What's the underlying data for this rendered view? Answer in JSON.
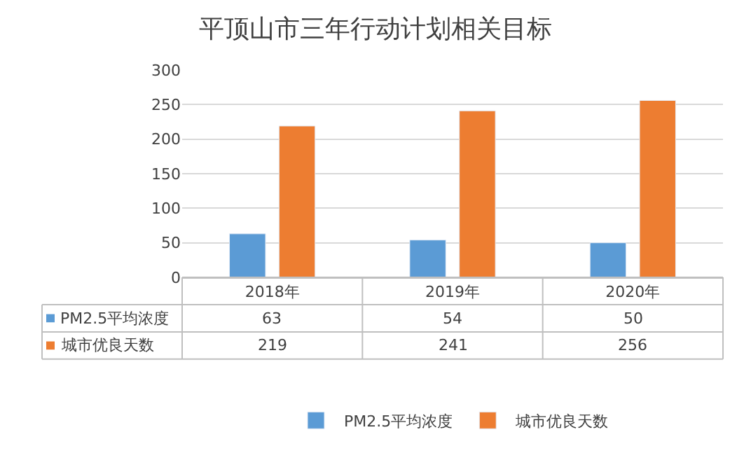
{
  "chart_data": {
    "type": "bar",
    "title": "平顶山市三年行动计划相关目标",
    "categories": [
      "2018年",
      "2019年",
      "2020年"
    ],
    "series": [
      {
        "name": "PM2.5平均浓度",
        "color": "#5b9bd5",
        "values": [
          63,
          54,
          50
        ]
      },
      {
        "name": "城市优良天数",
        "color": "#ed7d31",
        "values": [
          219,
          241,
          256
        ]
      }
    ],
    "ylim": [
      0,
      300
    ],
    "yticks": [
      0,
      50,
      100,
      150,
      200,
      250,
      300
    ],
    "grid": "y",
    "legend": "bottom",
    "data_labels": true
  }
}
